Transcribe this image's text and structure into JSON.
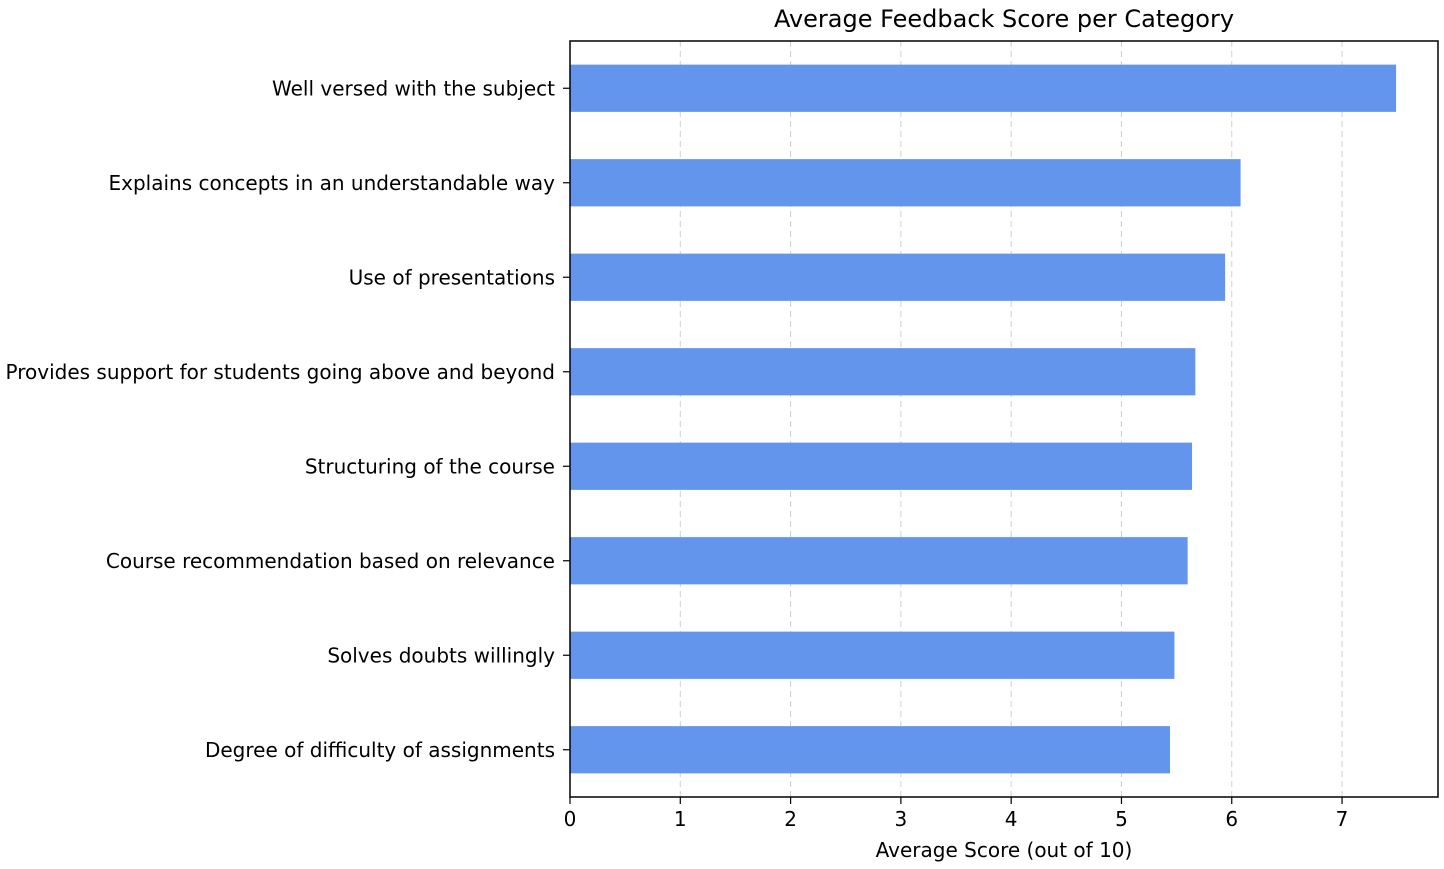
{
  "chart_data": {
    "type": "bar",
    "orientation": "horizontal",
    "title": "Average Feedback Score per Category",
    "xlabel": "Average Score (out of 10)",
    "ylabel": "",
    "categories": [
      "Well versed with the subject",
      "Explains concepts in an understandable way",
      "Use of presentations",
      "Provides support for students going above and beyond",
      "Structuring of the course",
      "Course recommendation based on relevance",
      "Solves doubts willingly",
      "Degree of difficulty of assignments"
    ],
    "values": [
      7.49,
      6.08,
      5.94,
      5.67,
      5.64,
      5.6,
      5.48,
      5.44
    ],
    "xlim": [
      0,
      7.87
    ],
    "xticks": [
      "0",
      "1",
      "2",
      "3",
      "4",
      "5",
      "6",
      "7"
    ],
    "grid": "vertical dashed",
    "legend": "none",
    "bar_color": "#6495ED"
  }
}
